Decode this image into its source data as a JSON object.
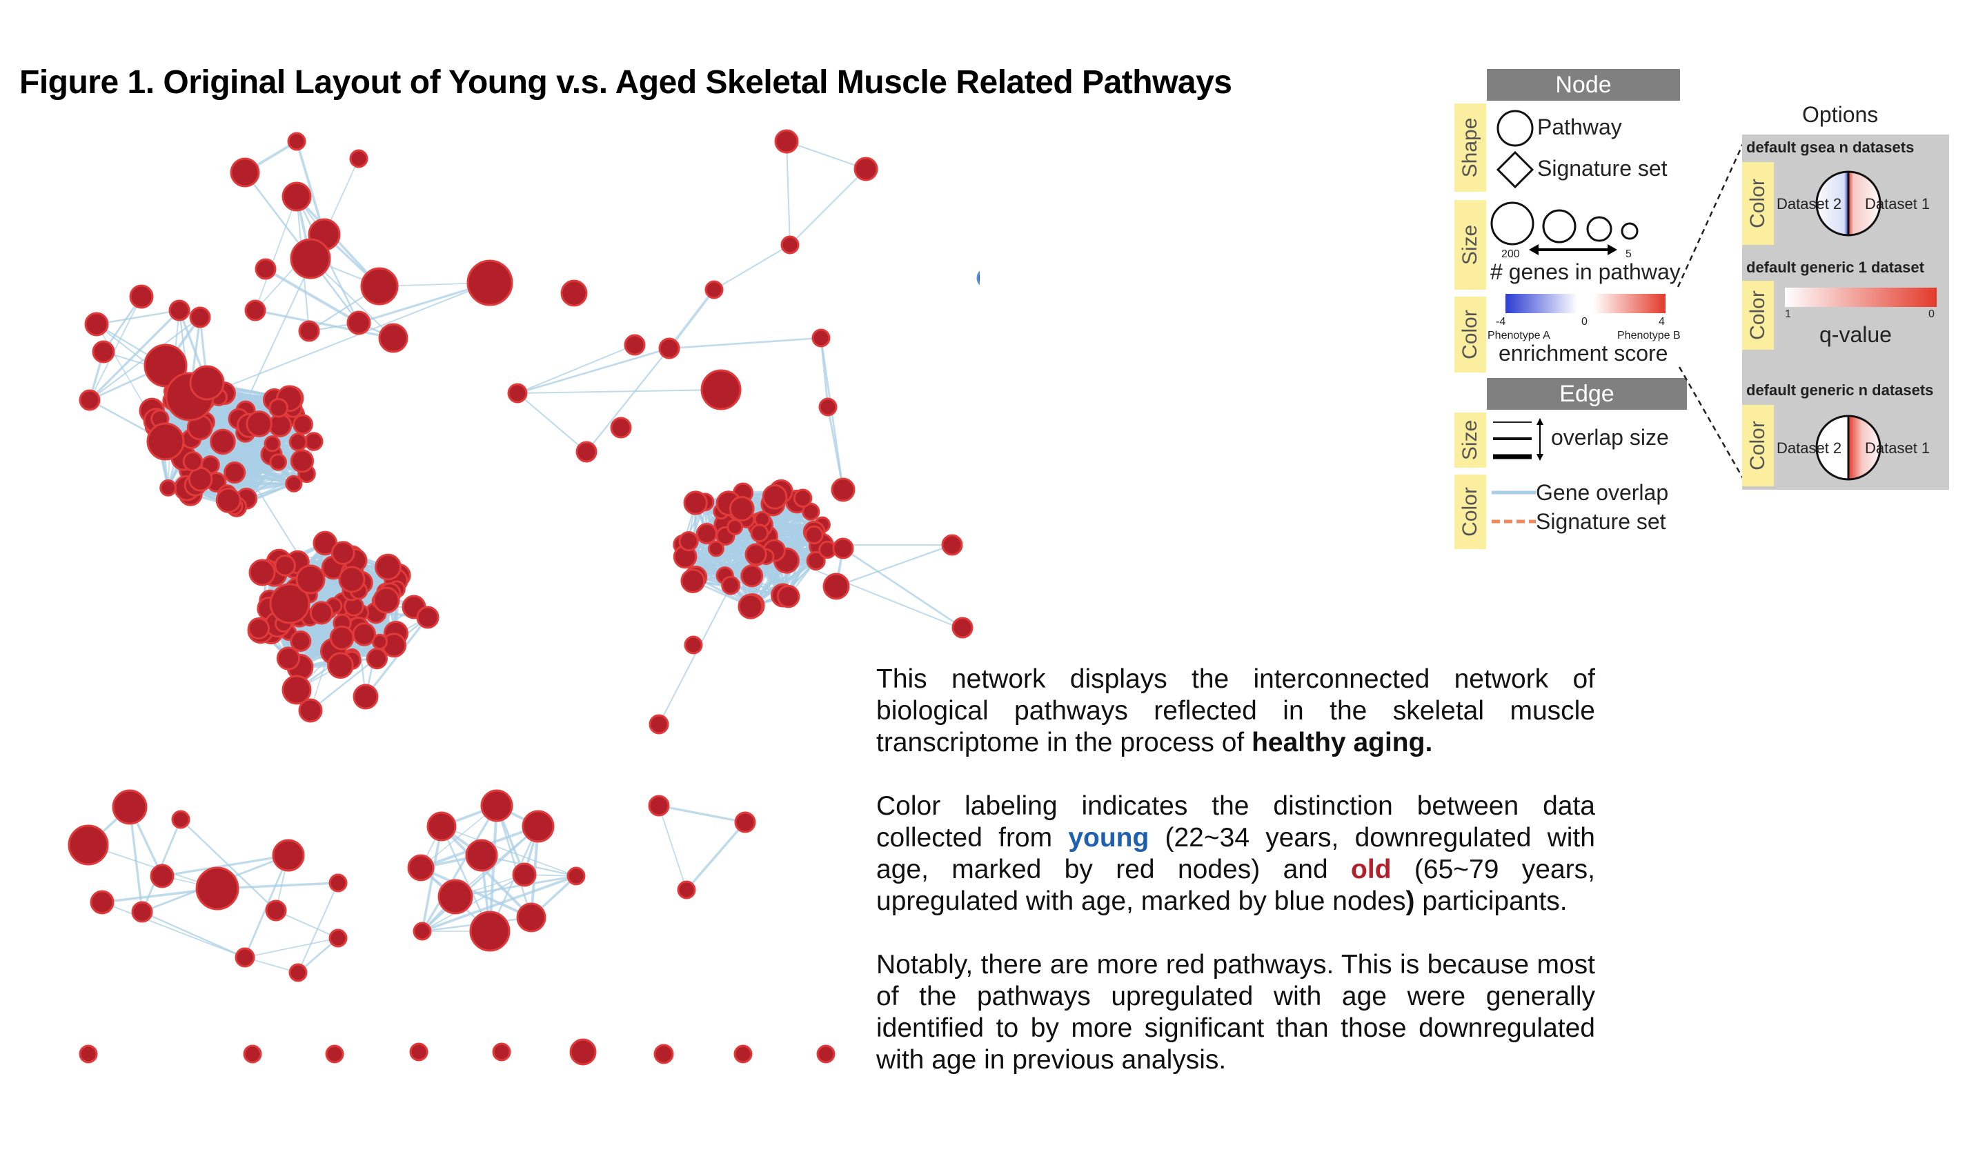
{
  "figure": {
    "title": "Figure 1. Original Layout of Young v.s. Aged Skeletal Muscle Related Pathways"
  },
  "description": {
    "p1_a": "This network displays the interconnected network of biological pathways reflected in the skeletal muscle transcriptome in the process of ",
    "p1_bold": "healthy aging.",
    "p2_a": "Color labeling indicates the distinction between data collected from ",
    "p2_young": "young",
    "p2_b": " (22~34 years, downregulated with age, marked by red nodes) and ",
    "p2_old": "old",
    "p2_c": " (65~79 years, upregulated with age, marked by blue nodes",
    "p2_bold_paren": ")",
    "p2_d": " participants.",
    "p3": "Notably, there are more red pathways. This is because most of the pathways upregulated with age were generally identified to by more significant than those downregulated with age in previous analysis."
  },
  "legend": {
    "node_header": "Node",
    "shape_label": "Shape",
    "pathway": "Pathway",
    "signature_set": "Signature set",
    "size_label": "Size",
    "size_200": "200",
    "size_5": "5",
    "genes_in_pathway": "# genes in pathway",
    "color_label": "Color",
    "neg4": "-4",
    "zero": "0",
    "pos4": "4",
    "phenotype_a": "Phenotype A",
    "phenotype_b": "Phenotype B",
    "enrichment_score": "enrichment score",
    "edge_header": "Edge",
    "edge_size_label": "Size",
    "overlap_size": "overlap size",
    "edge_color_label": "Color",
    "gene_overlap": "Gene overlap",
    "edge_signature_set": "Signature set"
  },
  "options": {
    "title": "Options",
    "gsea_n": "default gsea n datasets",
    "generic_1": "default generic 1 dataset",
    "generic_n": "default generic n datasets",
    "color_label": "Color",
    "dataset2": "Dataset 2",
    "dataset1": "Dataset 1",
    "q_one": "1",
    "q_zero": "0",
    "q_value": "q-value"
  },
  "colors": {
    "red_node": "#b3202a",
    "red_rim": "#e03a3a",
    "blue_node": "#2a5fb8",
    "blue_rim": "#5b8fd8",
    "edge": "#a9cfe6",
    "signature_edge": "#f08a5d"
  }
}
